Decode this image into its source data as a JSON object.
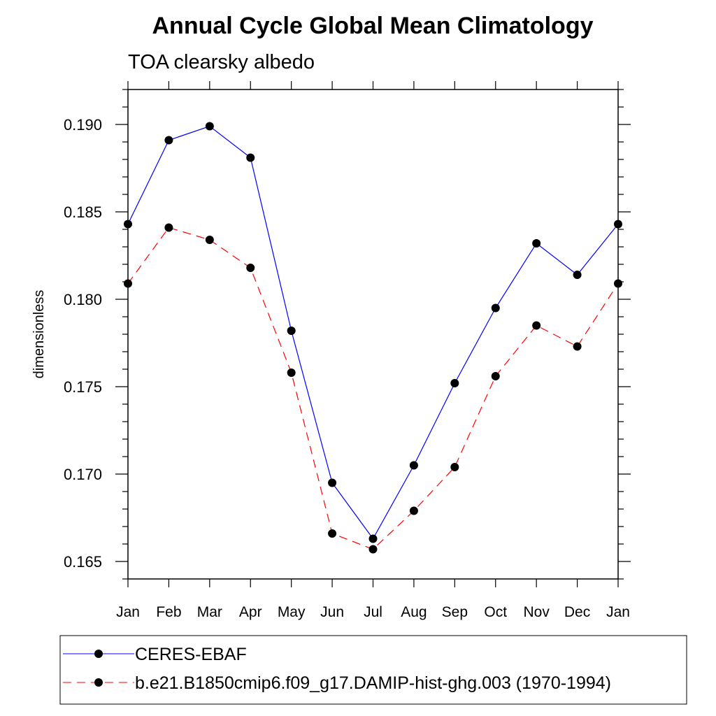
{
  "chart_data": {
    "type": "line",
    "title": "Annual Cycle Global Mean Climatology",
    "subtitle": "TOA clearsky albedo",
    "xlabel": "",
    "ylabel": "dimensionless",
    "categories": [
      "Jan",
      "Feb",
      "Mar",
      "Apr",
      "May",
      "Jun",
      "Jul",
      "Aug",
      "Sep",
      "Oct",
      "Nov",
      "Dec",
      "Jan"
    ],
    "ylim": [
      0.164,
      0.192
    ],
    "yticks": [
      "0.165",
      "0.170",
      "0.175",
      "0.180",
      "0.185",
      "0.190"
    ],
    "series": [
      {
        "name": "CERES-EBAF",
        "color": "#0000ff",
        "dash": "solid",
        "values": [
          0.1843,
          0.1891,
          0.1899,
          0.1881,
          0.1782,
          0.1695,
          0.1663,
          0.1705,
          0.1752,
          0.1795,
          0.1832,
          0.1814,
          0.1843
        ]
      },
      {
        "name": "b.e21.B1850cmip6.f09_g17.DAMIP-hist-ghg.003 (1970-1994)",
        "color": "#ff0000",
        "dash": "dashed",
        "values": [
          0.1809,
          0.1841,
          0.1834,
          0.1818,
          0.1758,
          0.1666,
          0.1657,
          0.1679,
          0.1704,
          0.1756,
          0.1785,
          0.1773,
          0.1809
        ]
      }
    ],
    "legend_position": "bottom",
    "grid": false
  }
}
